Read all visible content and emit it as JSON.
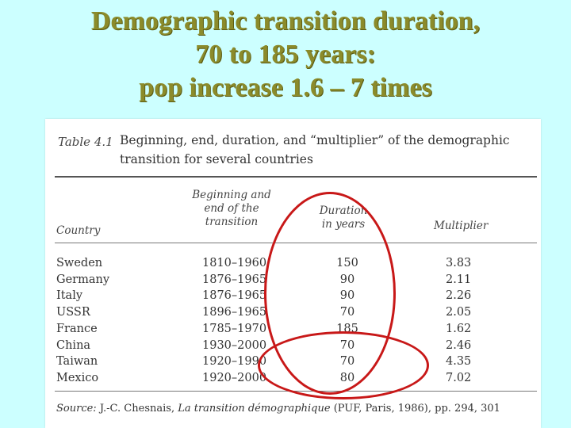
{
  "slide": {
    "title_lines": [
      "Demographic transition duration,",
      "70 to 185 years:",
      "pop increase 1.6 – 7 times"
    ]
  },
  "table": {
    "caption_number": "Table 4.1",
    "caption_line1": "Beginning, end, duration, and “multiplier” of the demographic",
    "caption_line2": "transition for several countries",
    "headers": {
      "country": "Country",
      "range_line1": "Beginning and",
      "range_line2": "end of the",
      "range_line3": "transition",
      "duration_line1": "Duration",
      "duration_line2": "in years",
      "multiplier": "Multiplier"
    },
    "rows": [
      {
        "country": "Sweden",
        "range": "1810–1960",
        "duration": "150",
        "multiplier": "3.83"
      },
      {
        "country": "Germany",
        "range": "1876–1965",
        "duration": "90",
        "multiplier": "2.11"
      },
      {
        "country": "Italy",
        "range": "1876–1965",
        "duration": "90",
        "multiplier": "2.26"
      },
      {
        "country": "USSR",
        "range": "1896–1965",
        "duration": "70",
        "multiplier": "2.05"
      },
      {
        "country": "France",
        "range": "1785–1970",
        "duration": "185",
        "multiplier": "1.62"
      },
      {
        "country": "China",
        "range": "1930–2000",
        "duration": "70",
        "multiplier": "2.46"
      },
      {
        "country": "Taiwan",
        "range": "1920–1990",
        "duration": "70",
        "multiplier": "4.35"
      },
      {
        "country": "Mexico",
        "range": "1920–2000",
        "duration": "80",
        "multiplier": "7.02"
      }
    ],
    "source_label": "Source:",
    "source_author": "J.-C. Chesnais,",
    "source_title": "La transition démographique",
    "source_rest": "(PUF, Paris, 1986), pp. 294, 301"
  },
  "colors": {
    "background": "#ccffff",
    "title": "#8b8b2b",
    "annotation": "#c81818"
  }
}
